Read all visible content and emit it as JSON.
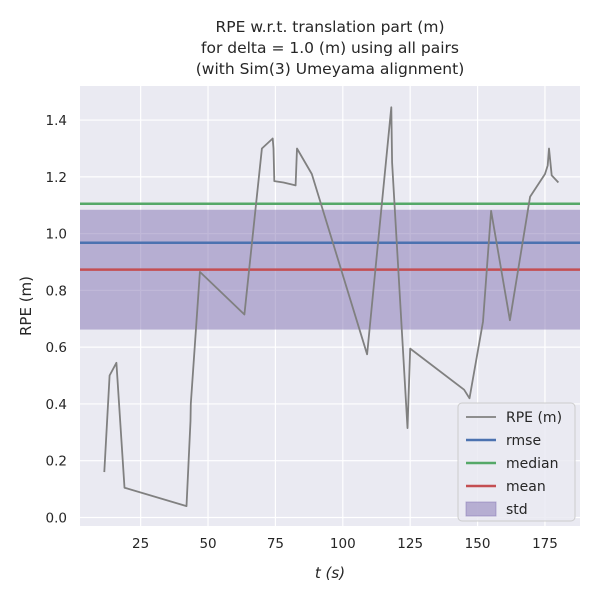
{
  "chart_data": {
    "type": "line",
    "title_lines": [
      "RPE w.r.t. translation part (m)",
      "for delta = 1.0 (m) using all pairs",
      "(with Sim(3) Umeyama alignment)"
    ],
    "xlabel": "t (s)",
    "ylabel": "RPE (m)",
    "xlim": [
      2.5,
      188
    ],
    "ylim": [
      -0.03,
      1.52
    ],
    "xticks": [
      25,
      50,
      75,
      100,
      125,
      150,
      175
    ],
    "yticks": [
      0.0,
      0.2,
      0.4,
      0.6,
      0.8,
      1.0,
      1.2,
      1.4
    ],
    "grid": true,
    "background": "#eaeaf2",
    "series": [
      {
        "name": "RPE (m)",
        "color": "#808080",
        "x": [
          11.5,
          13.5,
          16,
          19,
          42,
          43.5,
          43.6,
          47,
          63.5,
          70,
          74,
          74.3,
          74.6,
          78,
          82.5,
          83,
          88.5,
          109,
          118,
          118.3,
          124,
          125,
          145,
          147,
          152,
          155,
          162,
          169.5,
          175,
          176,
          176.5,
          177.5,
          180
        ],
        "y": [
          0.16,
          0.5,
          0.545,
          0.105,
          0.04,
          0.34,
          0.4,
          0.865,
          0.715,
          1.3,
          1.335,
          1.3,
          1.185,
          1.18,
          1.17,
          1.3,
          1.21,
          0.575,
          1.445,
          1.25,
          0.315,
          0.595,
          0.45,
          0.42,
          0.69,
          1.08,
          0.695,
          1.13,
          1.21,
          1.24,
          1.3,
          1.205,
          1.18
        ]
      }
    ],
    "lines": [
      {
        "name": "rmse",
        "value": 0.968,
        "color": "#4c72b0"
      },
      {
        "name": "median",
        "value": 1.105,
        "color": "#55a868"
      },
      {
        "name": "mean",
        "value": 0.873,
        "color": "#c44e52"
      }
    ],
    "band": {
      "name": "std",
      "low": 0.662,
      "high": 1.084,
      "color": "#8172b2"
    },
    "legend": {
      "position": "lower-right",
      "entries": [
        "RPE (m)",
        "rmse",
        "median",
        "mean",
        "std"
      ]
    }
  }
}
